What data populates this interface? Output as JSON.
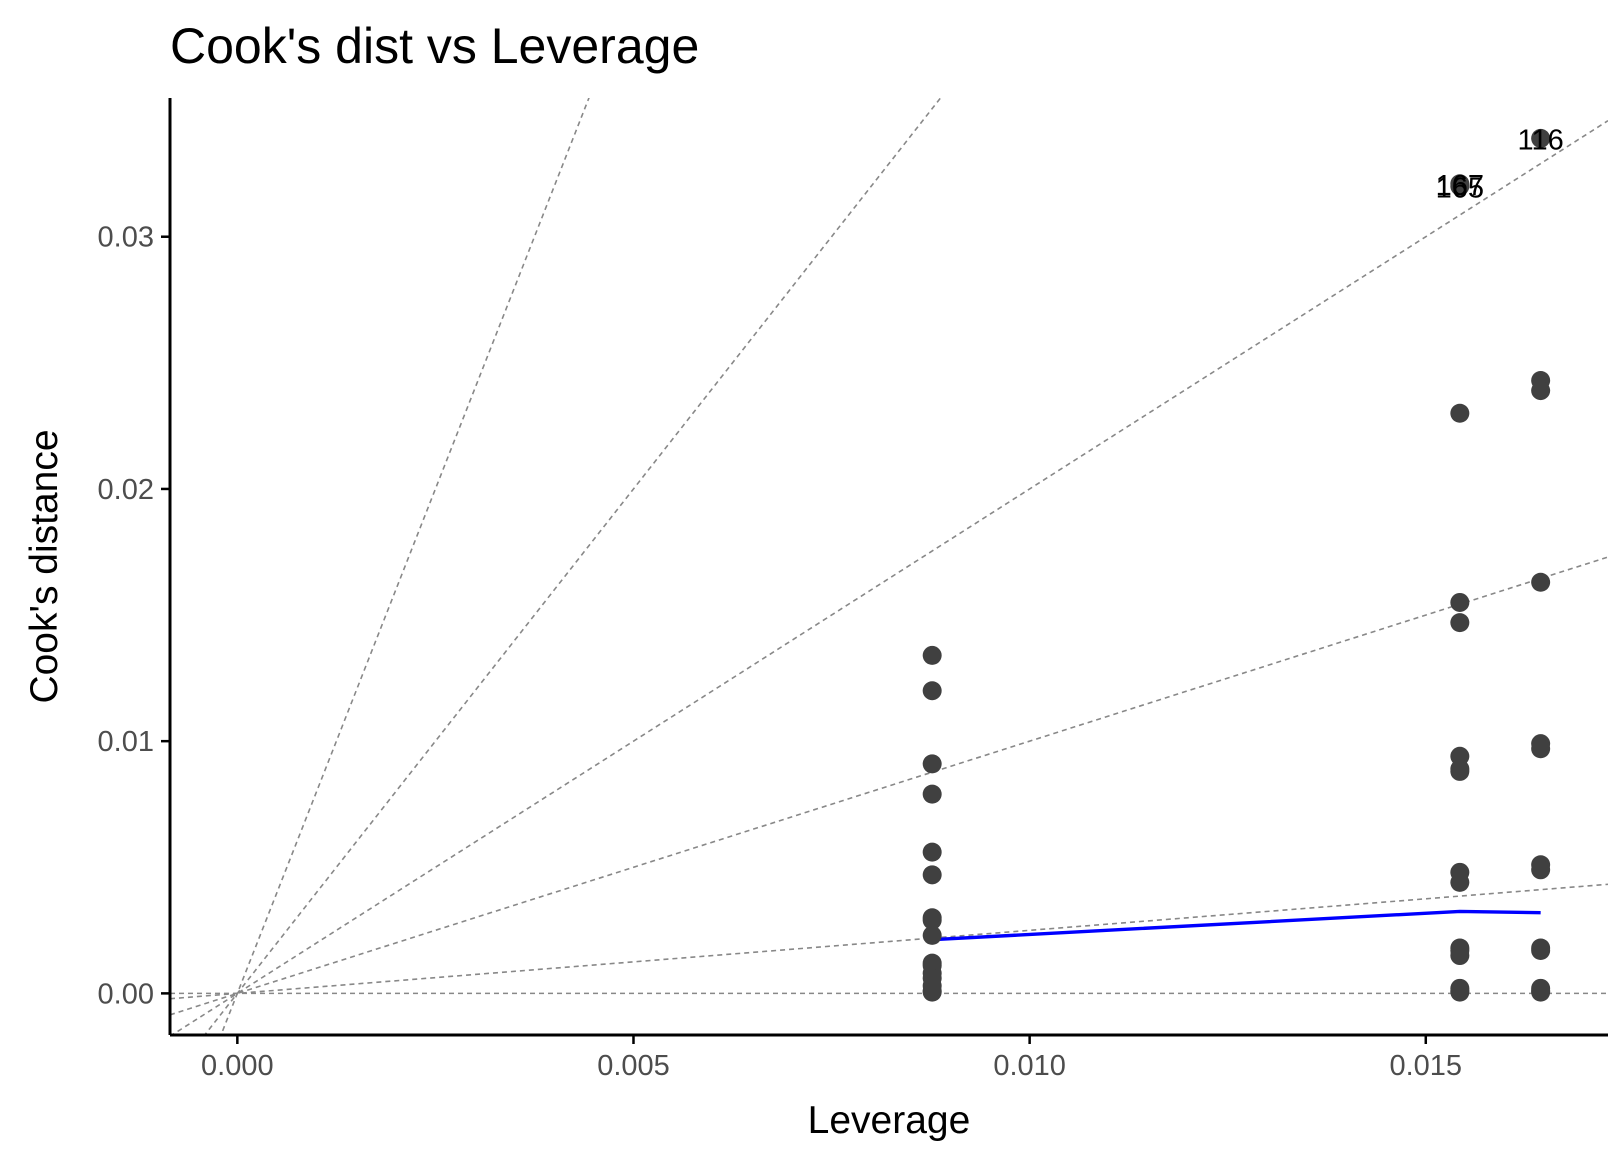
{
  "chart_data": {
    "type": "scatter",
    "title": "Cook's dist vs Leverage",
    "xlabel": "Leverage",
    "ylabel": "Cook's distance",
    "xlim": [
      -0.00085,
      0.0173
    ],
    "ylim": [
      -0.00165,
      0.0355
    ],
    "x_ticks": [
      0.0,
      0.005,
      0.01,
      0.015
    ],
    "x_tick_labels": [
      "0.000",
      "0.005",
      "0.010",
      "0.015"
    ],
    "y_ticks": [
      0.0,
      0.01,
      0.02,
      0.03
    ],
    "y_tick_labels": [
      "0.00",
      "0.01",
      "0.02",
      "0.03"
    ],
    "grid": false,
    "legend": "none",
    "colors": {
      "points": "#404040",
      "smooth": "#0000ff",
      "reference": "#888888",
      "axis": "#000000"
    },
    "points": {
      "x": [
        0.00877,
        0.00877,
        0.00877,
        0.00877,
        0.00877,
        0.00877,
        0.00877,
        0.00877,
        0.00877,
        0.00877,
        0.00877,
        0.00877,
        0.00877,
        0.00877,
        0.00877,
        0.00877,
        0.01543,
        0.01543,
        0.01543,
        0.01543,
        0.01543,
        0.01543,
        0.01543,
        0.01543,
        0.01543,
        0.01543,
        0.01543,
        0.01543,
        0.01543,
        0.01543,
        0.01543,
        0.01543,
        0.01645,
        0.01645,
        0.01645,
        0.01645,
        0.01645,
        0.01645,
        0.01645,
        0.01645,
        0.01645,
        0.01645,
        0.01645,
        0.01645,
        0.01645
      ],
      "y": [
        0.0134,
        0.012,
        0.0091,
        0.0079,
        0.0056,
        0.0047,
        0.003,
        0.0029,
        0.0023,
        0.0012,
        0.0011,
        0.0008,
        0.0006,
        0.0003,
        0.0001,
        5e-05,
        0.0321,
        0.032,
        0.023,
        0.0155,
        0.0147,
        0.0094,
        0.0089,
        0.0088,
        0.0048,
        0.0044,
        0.0018,
        0.0017,
        0.0015,
        0.0002,
        0.0001,
        5e-05,
        0.0339,
        0.0243,
        0.0239,
        0.0163,
        0.0099,
        0.0097,
        0.0051,
        0.0049,
        0.0018,
        0.0017,
        0.0002,
        0.0001,
        5e-05
      ]
    },
    "point_labels": [
      {
        "text": "116",
        "x": 0.01645,
        "y": 0.0339
      },
      {
        "text": "165",
        "x": 0.01543,
        "y": 0.032
      },
      {
        "text": "167",
        "x": 0.01543,
        "y": 0.0321
      }
    ],
    "smooth_line": {
      "x": [
        0.00877,
        0.01543,
        0.01645
      ],
      "y": [
        0.00213,
        0.00325,
        0.0032
      ]
    },
    "reference_slopes": [
      0,
      0.25,
      1,
      2,
      4,
      8
    ]
  }
}
